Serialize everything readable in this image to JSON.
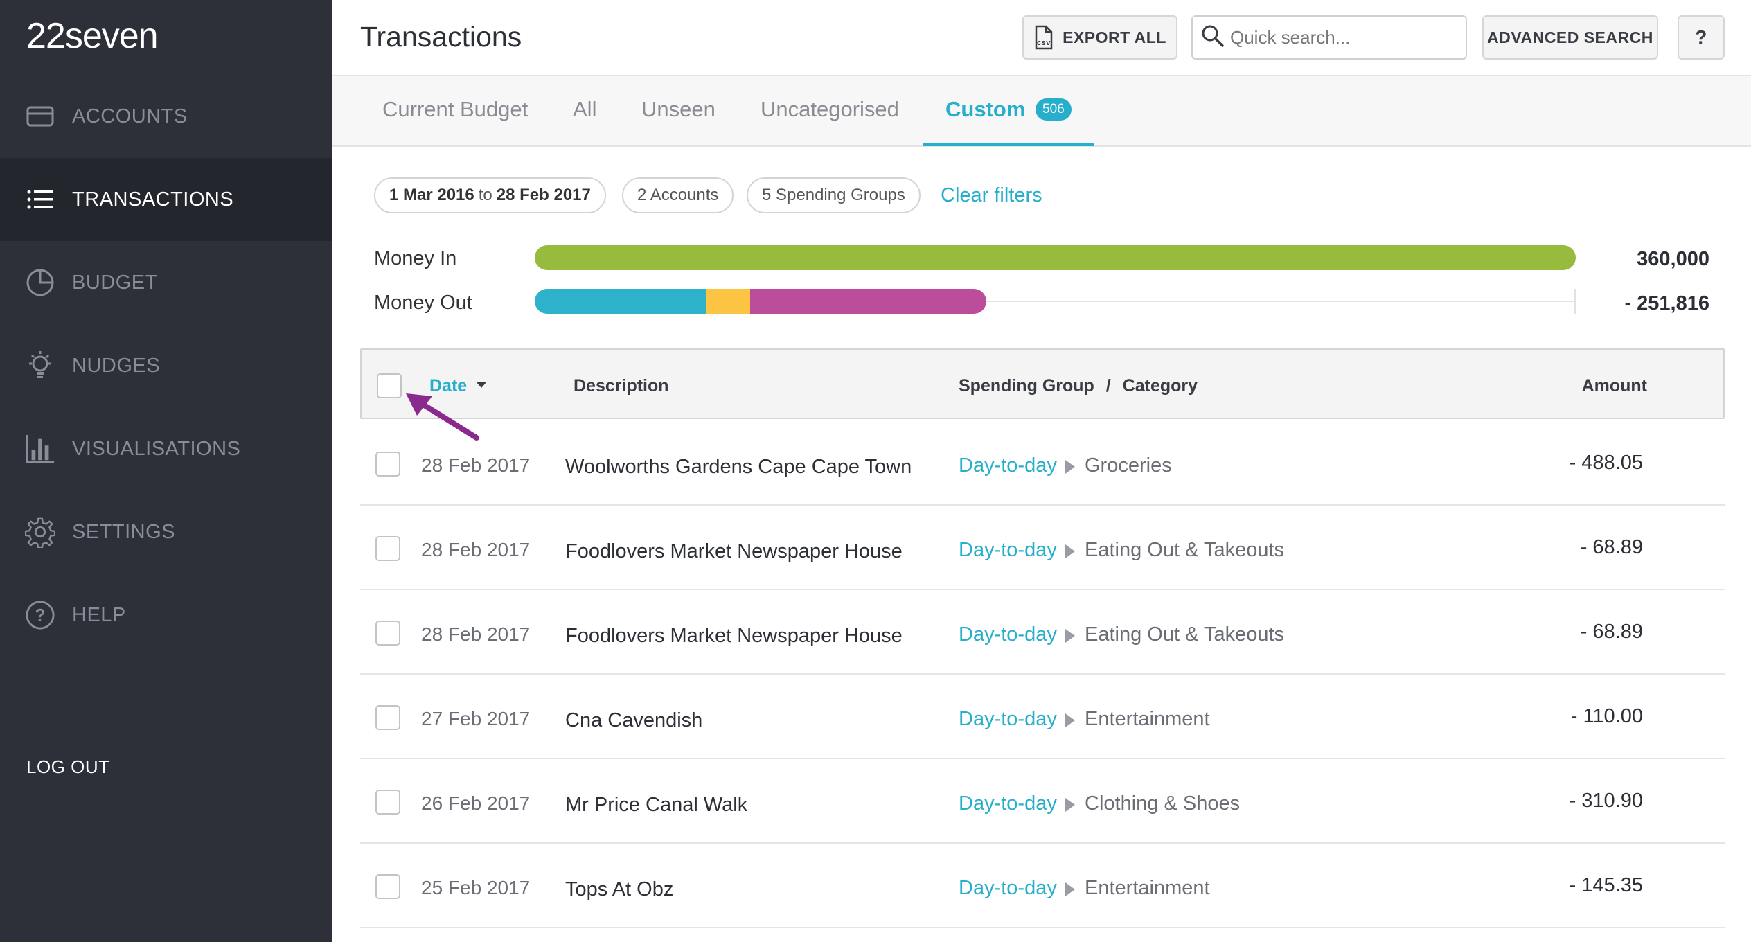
{
  "app": {
    "logo": "22seven"
  },
  "sidebar": {
    "items": [
      {
        "label": "ACCOUNTS",
        "icon": "card-icon"
      },
      {
        "label": "TRANSACTIONS",
        "icon": "list-icon"
      },
      {
        "label": "BUDGET",
        "icon": "pie-chart-icon"
      },
      {
        "label": "NUDGES",
        "icon": "lightbulb-icon"
      },
      {
        "label": "VISUALISATIONS",
        "icon": "bar-chart-icon"
      },
      {
        "label": "SETTINGS",
        "icon": "gear-icon"
      },
      {
        "label": "HELP",
        "icon": "question-circle-icon"
      }
    ],
    "logout": "LOG OUT"
  },
  "header": {
    "title": "Transactions",
    "export_label": "EXPORT ALL",
    "search_placeholder": "Quick search...",
    "advanced_label": "ADVANCED SEARCH",
    "help_label": "?"
  },
  "tabs": {
    "items": [
      "Current Budget",
      "All",
      "Unseen",
      "Uncategorised",
      "Custom"
    ],
    "active": "Custom",
    "custom_count": "506"
  },
  "filters": {
    "date_from": "1 Mar 2016",
    "date_to_word": "to",
    "date_to": "28 Feb 2017",
    "accounts": "2 Accounts",
    "groups": "5 Spending Groups",
    "clear": "Clear filters"
  },
  "money": {
    "in_label": "Money In",
    "in_value": "360,000",
    "out_label": "Money Out",
    "out_value": "- 251,816",
    "in_fill": 1.0,
    "out_fill": 0.434,
    "colors": {
      "in": "#97bc3d",
      "seg1": "#2eb2cb",
      "seg2": "#fbc443",
      "seg3": "#bb4d9b"
    }
  },
  "table": {
    "headers": {
      "date": "Date",
      "description": "Description",
      "group": "Spending Group",
      "separator": "/",
      "category": "Category",
      "amount": "Amount"
    },
    "rows": [
      {
        "date": "28 Feb 2017",
        "description": "Woolworths Gardens Cape Cape Town",
        "group": "Day-to-day",
        "category": "Groceries",
        "amount": "- 488.05"
      },
      {
        "date": "28 Feb 2017",
        "description": "Foodlovers Market Newspaper House",
        "group": "Day-to-day",
        "category": "Eating Out & Takeouts",
        "amount": "- 68.89"
      },
      {
        "date": "28 Feb 2017",
        "description": "Foodlovers Market Newspaper House",
        "group": "Day-to-day",
        "category": "Eating Out & Takeouts",
        "amount": "- 68.89"
      },
      {
        "date": "27 Feb 2017",
        "description": "Cna Cavendish",
        "group": "Day-to-day",
        "category": "Entertainment",
        "amount": "- 110.00"
      },
      {
        "date": "26 Feb 2017",
        "description": "Mr Price Canal Walk",
        "group": "Day-to-day",
        "category": "Clothing & Shoes",
        "amount": "- 310.90"
      },
      {
        "date": "25 Feb 2017",
        "description": "Tops At Obz",
        "group": "Day-to-day",
        "category": "Entertainment",
        "amount": "- 145.35"
      }
    ]
  },
  "colors": {
    "accent": "#27aecb",
    "sidebar": "#2d3039",
    "annotation": "#8a2a8e"
  }
}
